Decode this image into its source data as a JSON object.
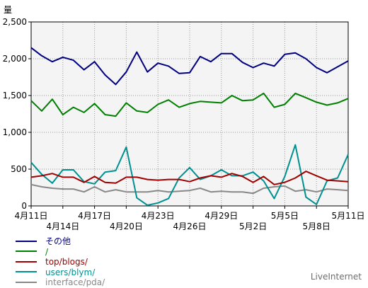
{
  "chart_data": {
    "type": "line",
    "ylabel": "量",
    "ylim": [
      0,
      2500
    ],
    "yticks": [
      "0",
      "500",
      "1,000",
      "1,500",
      "2,000",
      "2,500"
    ],
    "grid": true,
    "legend_position": "bottom-left",
    "x": [
      "4月11日",
      "4月12日",
      "4月13日",
      "4月14日",
      "4月15日",
      "4月16日",
      "4月17日",
      "4月18日",
      "4月19日",
      "4月20日",
      "4月21日",
      "4月22日",
      "4月23日",
      "4月24日",
      "4月25日",
      "4月26日",
      "4月27日",
      "4月28日",
      "4月29日",
      "4月30日",
      "5月1日",
      "5月2日",
      "5月3日",
      "5月4日",
      "5月5日",
      "5月6日",
      "5月7日",
      "5月8日",
      "5月9日",
      "5月10日",
      "5月11日"
    ],
    "xtick_labels": [
      {
        "label": "4月11日",
        "row": 1
      },
      {
        "label": "4月14日",
        "row": 2
      },
      {
        "label": "4月17日",
        "row": 1
      },
      {
        "label": "4月20日",
        "row": 2
      },
      {
        "label": "4月23日",
        "row": 1
      },
      {
        "label": "4月26日",
        "row": 2
      },
      {
        "label": "4月29日",
        "row": 1
      },
      {
        "label": "5月2日",
        "row": 2
      },
      {
        "label": "5月5日",
        "row": 1
      },
      {
        "label": "5月8日",
        "row": 2
      },
      {
        "label": "5月11日",
        "row": 1
      }
    ],
    "series": [
      {
        "name": "その他",
        "color": "#000080",
        "values": [
          2150,
          2040,
          1960,
          2020,
          1980,
          1850,
          1960,
          1780,
          1650,
          1820,
          2090,
          1820,
          1940,
          1900,
          1800,
          1810,
          2030,
          1960,
          2070,
          2070,
          1950,
          1880,
          1940,
          1900,
          2060,
          2080,
          2000,
          1880,
          1810,
          1890,
          1970
        ]
      },
      {
        "name": "/",
        "color": "#008000",
        "values": [
          1430,
          1290,
          1450,
          1240,
          1340,
          1270,
          1390,
          1240,
          1220,
          1400,
          1290,
          1270,
          1380,
          1440,
          1340,
          1390,
          1420,
          1410,
          1400,
          1500,
          1430,
          1440,
          1530,
          1340,
          1380,
          1530,
          1470,
          1410,
          1370,
          1400,
          1460
        ]
      },
      {
        "name": "top/blogs/",
        "color": "#a00000",
        "values": [
          390,
          410,
          440,
          390,
          390,
          320,
          400,
          320,
          310,
          390,
          390,
          360,
          350,
          360,
          360,
          330,
          380,
          410,
          390,
          440,
          400,
          320,
          400,
          290,
          320,
          380,
          470,
          410,
          350,
          340,
          330
        ]
      },
      {
        "name": "users/blym/",
        "color": "#009090",
        "values": [
          590,
          430,
          310,
          490,
          490,
          330,
          300,
          460,
          480,
          800,
          110,
          10,
          40,
          100,
          380,
          520,
          360,
          410,
          490,
          410,
          410,
          460,
          340,
          100,
          400,
          830,
          120,
          20,
          340,
          380,
          700
        ]
      },
      {
        "name": "interface/pda/",
        "color": "#888888",
        "values": [
          290,
          260,
          240,
          230,
          230,
          190,
          260,
          190,
          220,
          190,
          190,
          190,
          210,
          190,
          200,
          210,
          240,
          190,
          200,
          190,
          190,
          170,
          240,
          260,
          270,
          200,
          220,
          190,
          230,
          220,
          210
        ]
      }
    ]
  },
  "legend": {
    "items": [
      "その他",
      "/",
      "top/blogs/",
      "users/blym/",
      "interface/pda/"
    ]
  },
  "brand": "LiveInternet"
}
